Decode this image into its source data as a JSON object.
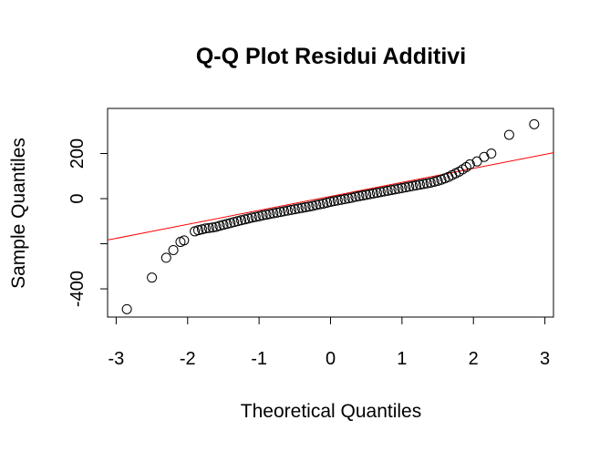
{
  "chart_data": {
    "type": "scatter",
    "title": "Q-Q Plot Residui Additivi",
    "xlabel": "Theoretical Quantiles",
    "ylabel": "Sample Quantiles",
    "xlim": [
      -3.12,
      3.12
    ],
    "ylim": [
      -525,
      400
    ],
    "x_ticks": [
      -3,
      -2,
      -1,
      0,
      1,
      2,
      3
    ],
    "x_tick_labels": [
      "-3",
      "-2",
      "-1",
      "0",
      "1",
      "2",
      "3"
    ],
    "y_ticks": [
      -400,
      -200,
      0,
      200
    ],
    "y_tick_labels": [
      "-400",
      "",
      "0",
      "200"
    ],
    "grid": false,
    "reference_line": {
      "intercept": 10,
      "slope": 62,
      "color": "#ff0000"
    },
    "point_style": {
      "shape": "open-circle",
      "color": "#000000"
    },
    "points": [
      [
        -2.85,
        -490
      ],
      [
        -2.5,
        -350
      ],
      [
        -2.3,
        -262
      ],
      [
        -2.2,
        -228
      ],
      [
        -2.1,
        -192
      ],
      [
        -2.05,
        -185
      ],
      [
        -1.9,
        -145
      ],
      [
        -1.85,
        -140
      ],
      [
        -1.8,
        -136
      ],
      [
        -1.75,
        -132
      ],
      [
        -1.7,
        -130
      ],
      [
        -1.65,
        -128
      ],
      [
        -1.6,
        -125
      ],
      [
        -1.55,
        -120
      ],
      [
        -1.5,
        -116
      ],
      [
        -1.45,
        -112
      ],
      [
        -1.4,
        -108
      ],
      [
        -1.35,
        -104
      ],
      [
        -1.3,
        -100
      ],
      [
        -1.25,
        -96
      ],
      [
        -1.2,
        -92
      ],
      [
        -1.15,
        -88
      ],
      [
        -1.1,
        -84
      ],
      [
        -1.05,
        -81
      ],
      [
        -1.0,
        -78
      ],
      [
        -0.95,
        -74
      ],
      [
        -0.9,
        -71
      ],
      [
        -0.85,
        -68
      ],
      [
        -0.8,
        -65
      ],
      [
        -0.75,
        -62
      ],
      [
        -0.7,
        -59
      ],
      [
        -0.65,
        -56
      ],
      [
        -0.6,
        -53
      ],
      [
        -0.55,
        -50
      ],
      [
        -0.5,
        -47
      ],
      [
        -0.45,
        -44
      ],
      [
        -0.4,
        -41
      ],
      [
        -0.35,
        -38
      ],
      [
        -0.3,
        -35
      ],
      [
        -0.25,
        -32
      ],
      [
        -0.2,
        -28
      ],
      [
        -0.15,
        -25
      ],
      [
        -0.1,
        -22
      ],
      [
        -0.05,
        -18
      ],
      [
        0.0,
        -14
      ],
      [
        0.05,
        -11
      ],
      [
        0.1,
        -8
      ],
      [
        0.15,
        -5
      ],
      [
        0.2,
        -2
      ],
      [
        0.25,
        1
      ],
      [
        0.3,
        4
      ],
      [
        0.35,
        8
      ],
      [
        0.4,
        11
      ],
      [
        0.45,
        14
      ],
      [
        0.5,
        17
      ],
      [
        0.55,
        20
      ],
      [
        0.6,
        23
      ],
      [
        0.65,
        26
      ],
      [
        0.7,
        29
      ],
      [
        0.75,
        32
      ],
      [
        0.8,
        35
      ],
      [
        0.85,
        38
      ],
      [
        0.9,
        41
      ],
      [
        0.95,
        44
      ],
      [
        1.0,
        47
      ],
      [
        1.05,
        50
      ],
      [
        1.1,
        53
      ],
      [
        1.15,
        56
      ],
      [
        1.2,
        59
      ],
      [
        1.25,
        62
      ],
      [
        1.3,
        65
      ],
      [
        1.35,
        68
      ],
      [
        1.4,
        71
      ],
      [
        1.45,
        75
      ],
      [
        1.5,
        79
      ],
      [
        1.55,
        84
      ],
      [
        1.6,
        90
      ],
      [
        1.65,
        96
      ],
      [
        1.7,
        104
      ],
      [
        1.75,
        112
      ],
      [
        1.8,
        120
      ],
      [
        1.85,
        130
      ],
      [
        1.9,
        140
      ],
      [
        1.95,
        152
      ],
      [
        2.05,
        165
      ],
      [
        2.15,
        185
      ],
      [
        2.25,
        200
      ],
      [
        2.5,
        283
      ],
      [
        2.85,
        330
      ]
    ]
  }
}
